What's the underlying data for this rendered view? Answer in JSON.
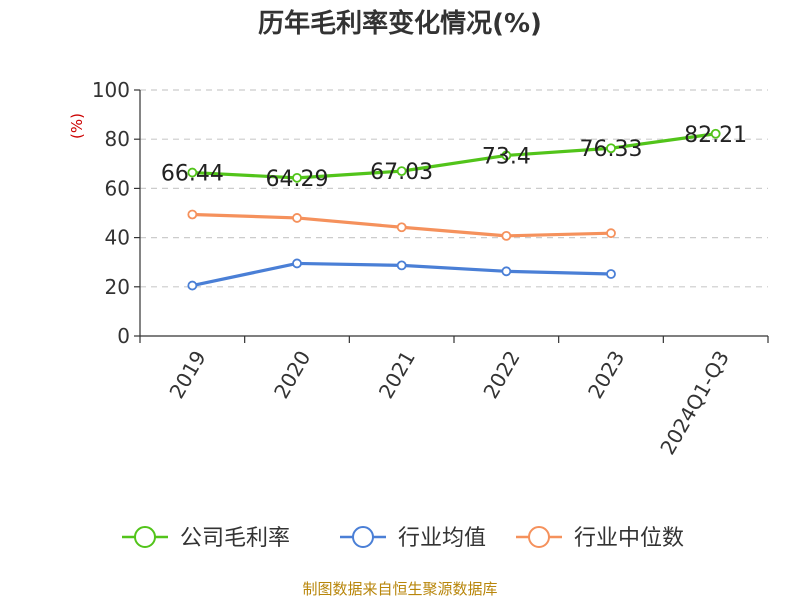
{
  "chart_data": {
    "type": "line",
    "title": "历年毛利率变化情况(%)",
    "ylabel": "(%)",
    "categories": [
      "2019",
      "2020",
      "2021",
      "2022",
      "2023",
      "2024Q1-Q3"
    ],
    "yticks": [
      "0",
      "20",
      "40",
      "60",
      "80",
      "100"
    ],
    "ylim": [
      0,
      100
    ],
    "grid": true,
    "legend_position": "bottom",
    "series": [
      {
        "name": "公司毛利率",
        "color": "#52c41a",
        "values": [
          66.44,
          64.29,
          67.03,
          73.4,
          76.33,
          82.21
        ],
        "labels": [
          "66.44",
          "64.29",
          "67.03",
          "73.4",
          "76.33",
          "82.21"
        ]
      },
      {
        "name": "行业均值",
        "color": "#4a7fd6",
        "values": [
          20.5,
          29.5,
          28.7,
          26.3,
          25.2,
          null
        ]
      },
      {
        "name": "行业中位数",
        "color": "#f5915c",
        "values": [
          49.4,
          48.0,
          44.2,
          40.7,
          41.8,
          null
        ]
      }
    ]
  },
  "footer": {
    "source": "制图数据来自恒生聚源数据库"
  }
}
